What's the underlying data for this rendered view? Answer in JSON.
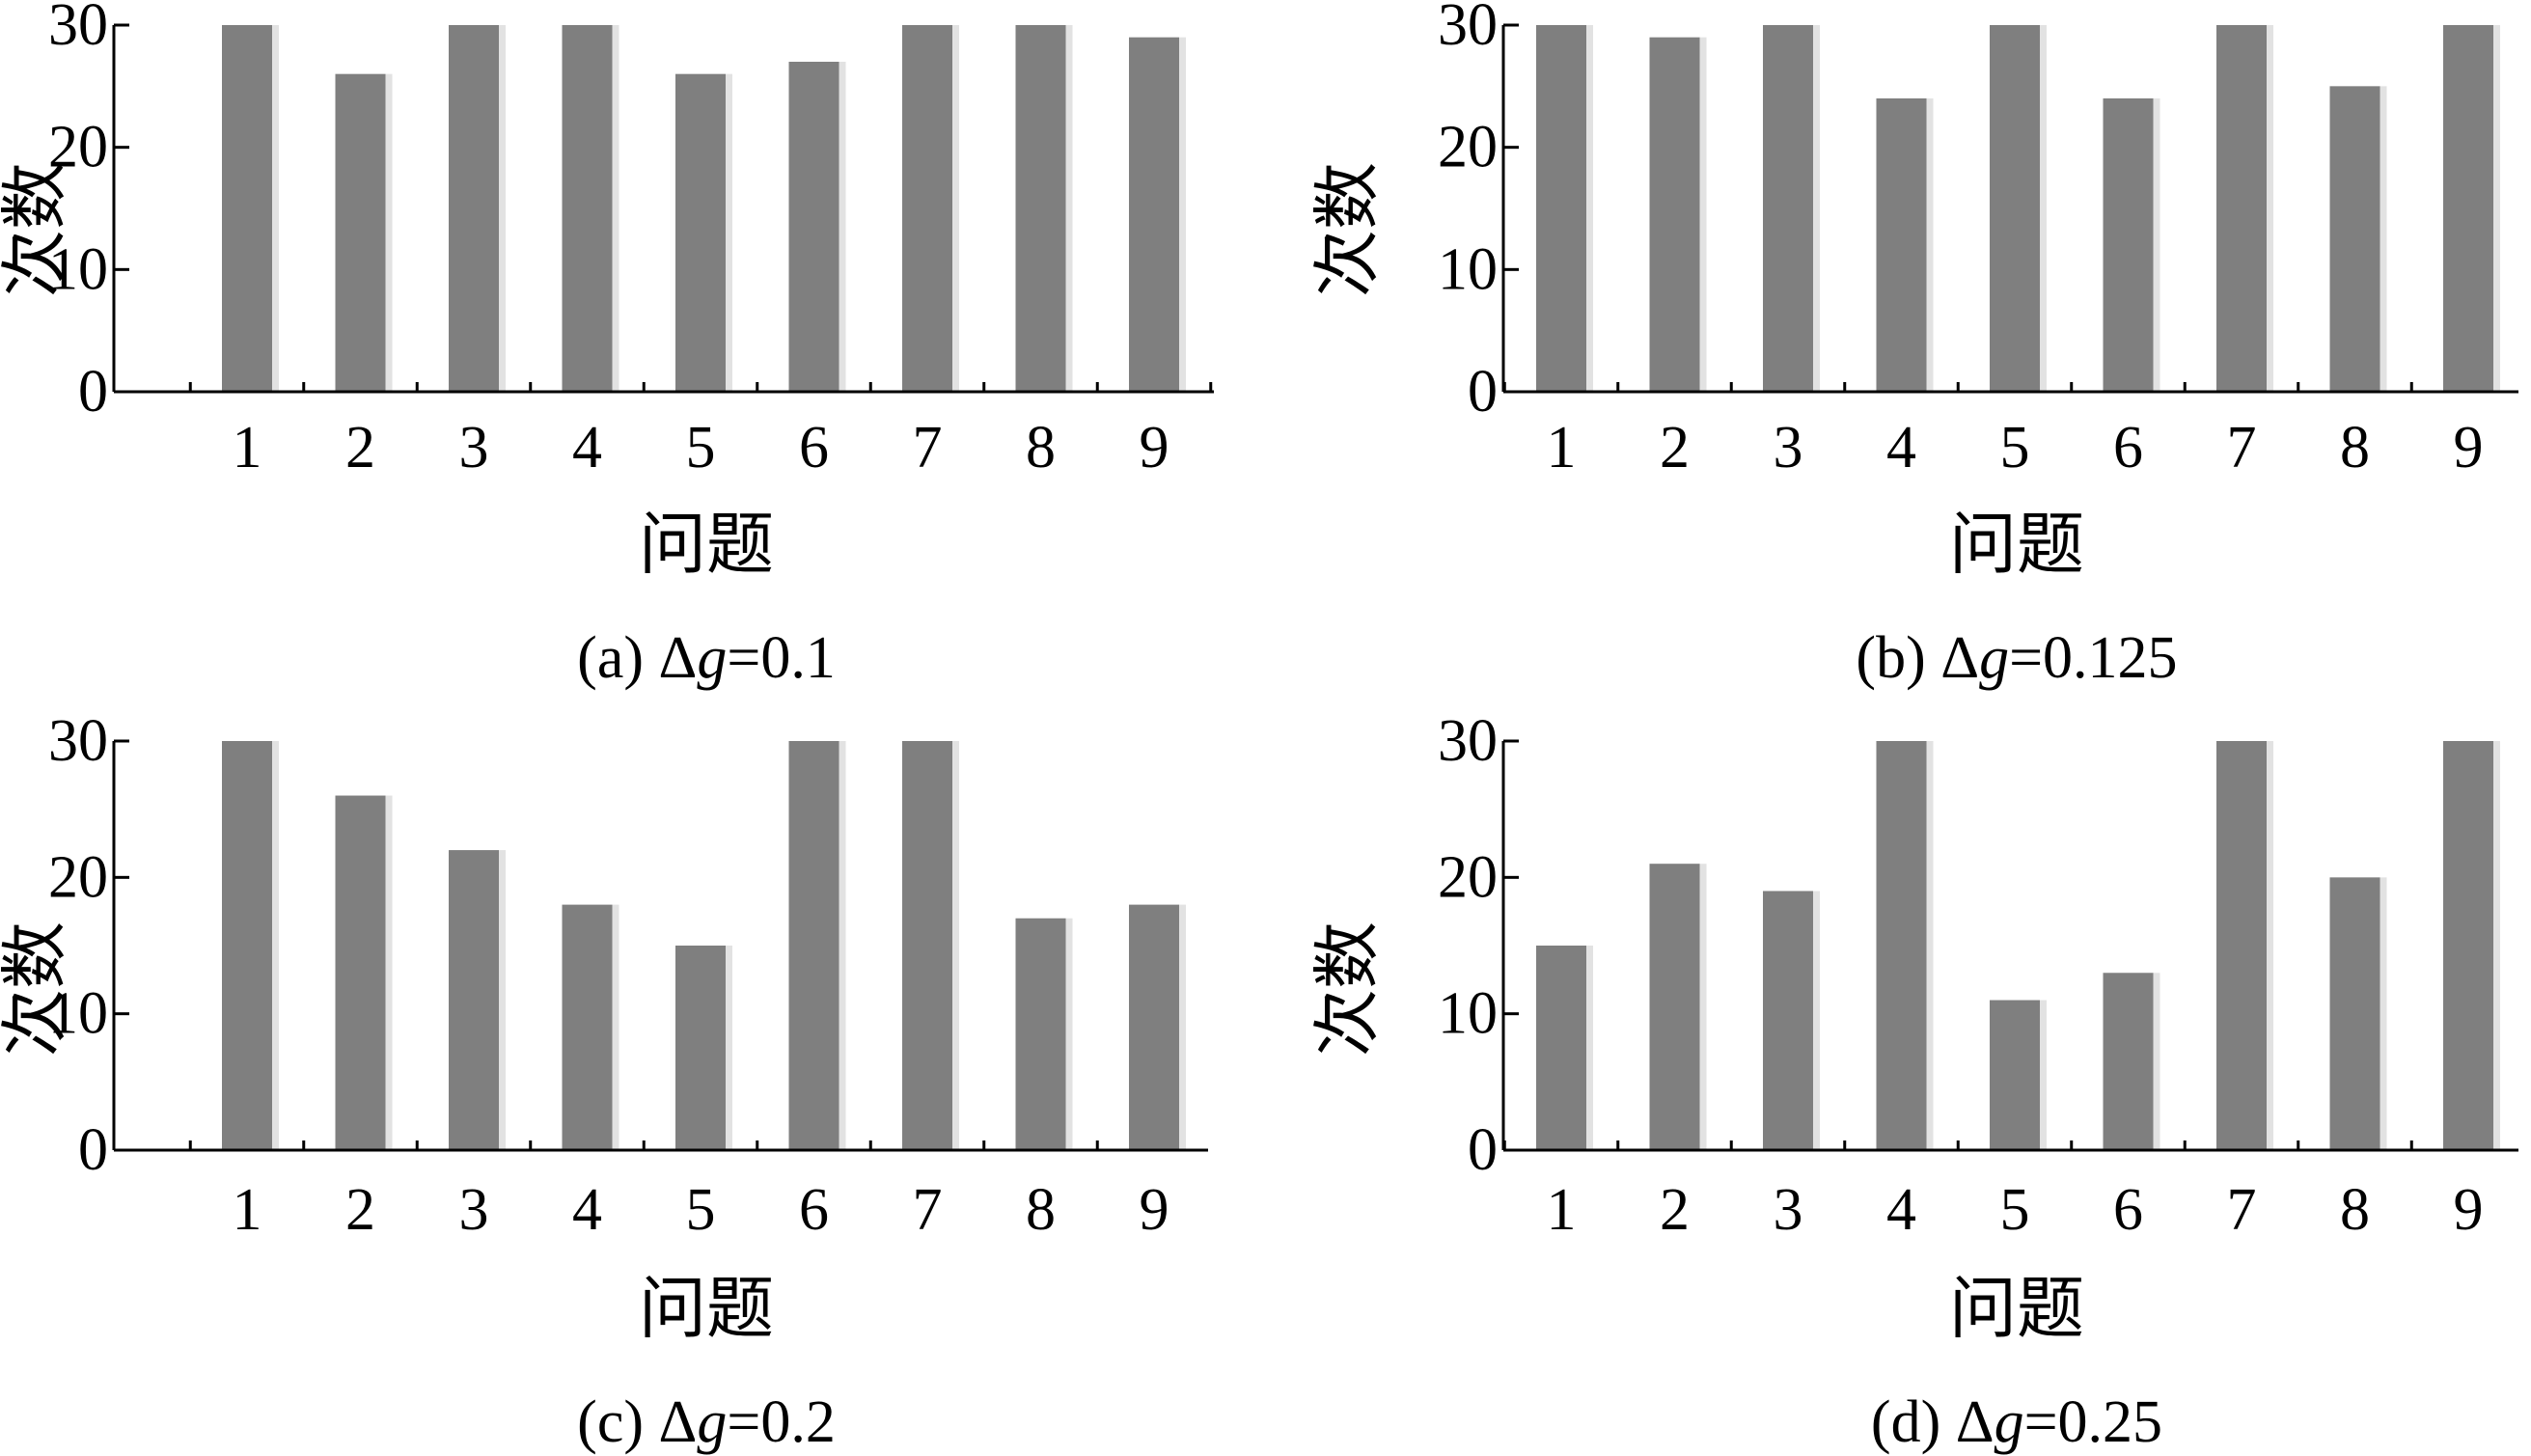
{
  "figure": {
    "panels": [
      {
        "caption": {
          "prefix": "(a) Δ",
          "var": "g",
          "value": "=0.1"
        },
        "ylabel": "次数",
        "xlabel": "问题"
      },
      {
        "caption": {
          "prefix": "(b) Δ",
          "var": "g",
          "value": "=0.125"
        },
        "ylabel": "次数",
        "xlabel": "问题"
      },
      {
        "caption": {
          "prefix": "(c) Δ",
          "var": "g",
          "value": "=0.2"
        },
        "ylabel": "次数",
        "xlabel": "问题"
      },
      {
        "caption": {
          "prefix": "(d) Δ",
          "var": "g",
          "value": "=0.25"
        },
        "ylabel": "次数",
        "xlabel": "问题"
      }
    ]
  },
  "colors": {
    "bar": "#7f7f7f",
    "bar_highlight": "#e2e2e2",
    "axis": "#000000"
  },
  "chart_data": [
    {
      "type": "bar",
      "title": "",
      "caption": "(a) Δg=0.1",
      "xlabel": "问题",
      "ylabel": "次数",
      "categories": [
        "1",
        "2",
        "3",
        "4",
        "5",
        "6",
        "7",
        "8",
        "9"
      ],
      "values": [
        30,
        26,
        30,
        30,
        26,
        27,
        30,
        30,
        29
      ],
      "ylim": [
        0,
        30
      ],
      "yticks": [
        0,
        10,
        20,
        30
      ],
      "grid": false
    },
    {
      "type": "bar",
      "title": "",
      "caption": "(b) Δg=0.125",
      "xlabel": "问题",
      "ylabel": "次数",
      "categories": [
        "1",
        "2",
        "3",
        "4",
        "5",
        "6",
        "7",
        "8",
        "9"
      ],
      "values": [
        30,
        29,
        30,
        24,
        30,
        24,
        30,
        25,
        30
      ],
      "ylim": [
        0,
        30
      ],
      "yticks": [
        0,
        10,
        20,
        30
      ],
      "grid": false
    },
    {
      "type": "bar",
      "title": "",
      "caption": "(c) Δg=0.2",
      "xlabel": "问题",
      "ylabel": "次数",
      "categories": [
        "1",
        "2",
        "3",
        "4",
        "5",
        "6",
        "7",
        "8",
        "9"
      ],
      "values": [
        30,
        26,
        22,
        18,
        15,
        30,
        30,
        17,
        18
      ],
      "ylim": [
        0,
        30
      ],
      "yticks": [
        0,
        10,
        20,
        30
      ],
      "grid": false
    },
    {
      "type": "bar",
      "title": "",
      "caption": "(d) Δg=0.25",
      "xlabel": "问题",
      "ylabel": "次数",
      "categories": [
        "1",
        "2",
        "3",
        "4",
        "5",
        "6",
        "7",
        "8",
        "9"
      ],
      "values": [
        15,
        21,
        19,
        30,
        11,
        13,
        30,
        20,
        30
      ],
      "ylim": [
        0,
        30
      ],
      "yticks": [
        0,
        10,
        20,
        30
      ],
      "grid": false
    }
  ]
}
